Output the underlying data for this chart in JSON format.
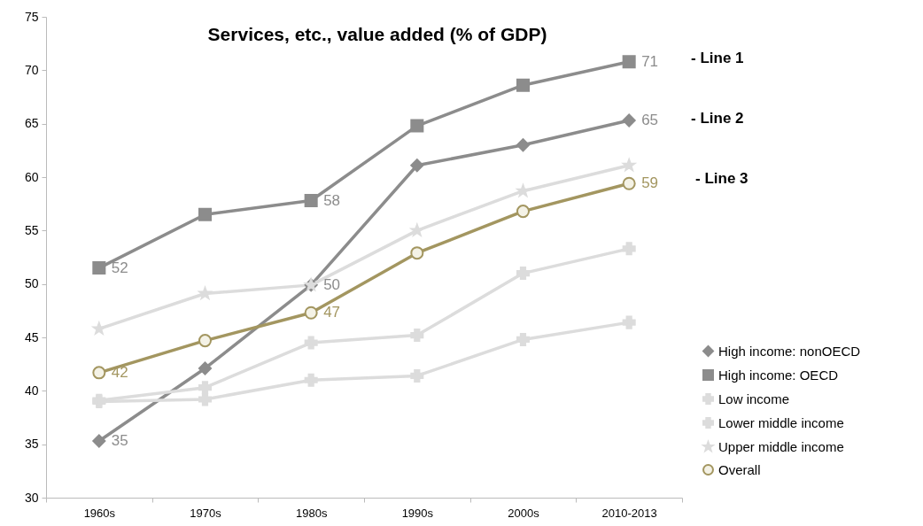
{
  "chart_data": {
    "type": "line",
    "title": "Services, etc., value added (% of GDP)",
    "categories": [
      "1960s",
      "1970s",
      "1980s",
      "1990s",
      "2000s",
      "2010-2013"
    ],
    "ylim": [
      30,
      75
    ],
    "yticks": [
      30,
      35,
      40,
      45,
      50,
      55,
      60,
      65,
      70,
      75
    ],
    "grid": false,
    "legend": "bottom right",
    "series": [
      {
        "name": "High income: nonOECD",
        "color": "#8c8c8c",
        "marker": "diamond",
        "values": [
          35.3,
          42.1,
          49.9,
          61.1,
          63.0,
          65.3
        ],
        "value_labels": [
          "35",
          null,
          "50",
          null,
          null,
          "65"
        ]
      },
      {
        "name": "High income: OECD",
        "color": "#8c8c8c",
        "marker": "square",
        "values": [
          51.5,
          56.5,
          57.8,
          64.8,
          68.6,
          70.8
        ],
        "value_labels": [
          "52",
          null,
          "58",
          null,
          null,
          "71"
        ]
      },
      {
        "name": "Low income",
        "color": "#dcdcdc",
        "marker": "cross",
        "values": [
          39.0,
          39.2,
          41.0,
          41.4,
          44.8,
          46.4
        ]
      },
      {
        "name": "Lower middle income",
        "color": "#dcdcdc",
        "marker": "cross",
        "values": [
          39.1,
          40.3,
          44.5,
          45.2,
          51.0,
          53.3
        ]
      },
      {
        "name": "Upper middle income",
        "color": "#dcdcdc",
        "marker": "star",
        "values": [
          45.8,
          49.1,
          49.9,
          55.0,
          58.7,
          61.1
        ]
      },
      {
        "name": "Overall",
        "color": "#a39660",
        "marker": "circle",
        "values": [
          41.7,
          44.7,
          47.3,
          52.9,
          56.8,
          59.4
        ],
        "value_labels": [
          "42",
          null,
          "47",
          null,
          null,
          "59"
        ]
      }
    ],
    "annotations": [
      "- Line 1",
      "- Line 2",
      "- Line 3"
    ]
  }
}
